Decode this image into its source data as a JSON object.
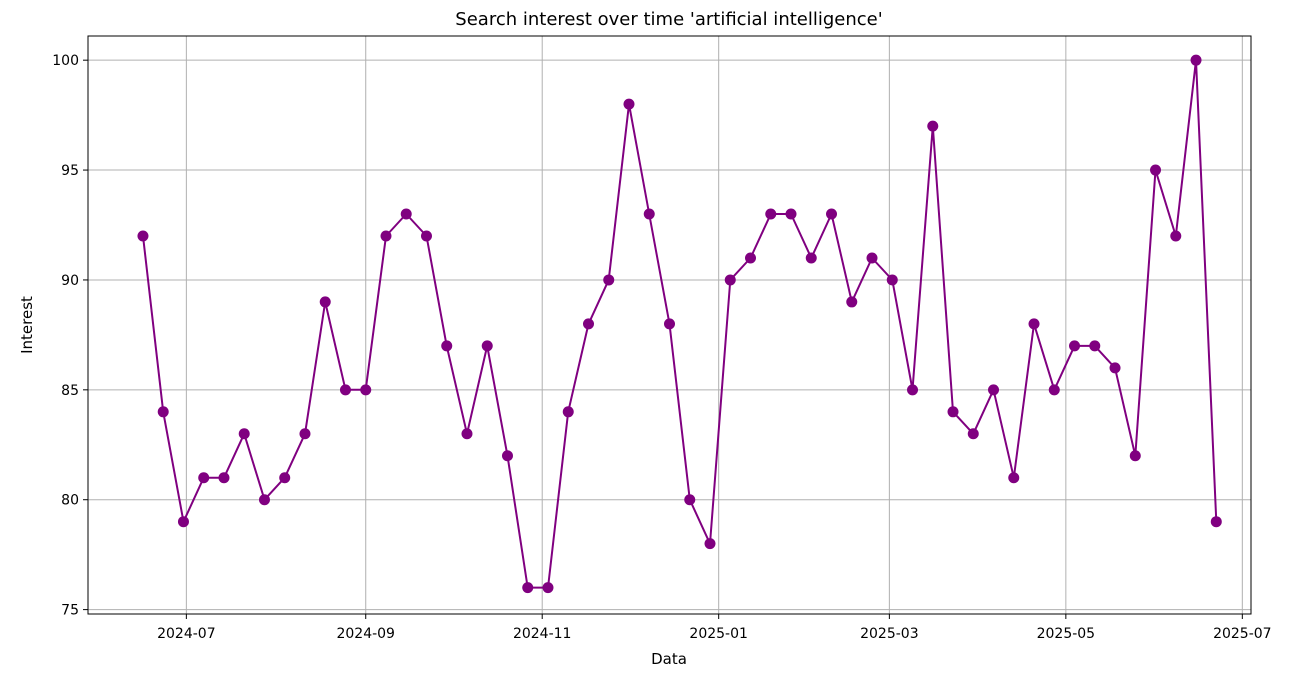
{
  "chart_data": {
    "type": "line",
    "title": "Search interest over time 'artificial intelligence'",
    "xlabel": "Data",
    "ylabel": "Interest",
    "grid": true,
    "colors": {
      "line": "#800080",
      "marker": "#800080"
    },
    "xlim": [
      "2024-05-28",
      "2025-07-04"
    ],
    "ylim": [
      74.8,
      101.1
    ],
    "x_ticks": [
      "2024-07",
      "2024-09",
      "2024-11",
      "2025-01",
      "2025-03",
      "2025-05",
      "2025-07"
    ],
    "y_ticks": [
      75,
      80,
      85,
      90,
      95,
      100
    ],
    "series": [
      {
        "x": [
          "2024-06-16",
          "2024-06-23",
          "2024-06-30",
          "2024-07-07",
          "2024-07-14",
          "2024-07-21",
          "2024-07-28",
          "2024-08-04",
          "2024-08-11",
          "2024-08-18",
          "2024-08-25",
          "2024-09-01",
          "2024-09-08",
          "2024-09-15",
          "2024-09-22",
          "2024-09-29",
          "2024-10-06",
          "2024-10-13",
          "2024-10-20",
          "2024-10-27",
          "2024-11-03",
          "2024-11-10",
          "2024-11-17",
          "2024-11-24",
          "2024-12-01",
          "2024-12-08",
          "2024-12-15",
          "2024-12-22",
          "2024-12-29",
          "2025-01-05",
          "2025-01-12",
          "2025-01-19",
          "2025-01-26",
          "2025-02-02",
          "2025-02-09",
          "2025-02-16",
          "2025-02-23",
          "2025-03-02",
          "2025-03-09",
          "2025-03-16",
          "2025-03-23",
          "2025-03-30",
          "2025-04-06",
          "2025-04-13",
          "2025-04-20",
          "2025-04-27",
          "2025-05-04",
          "2025-05-11",
          "2025-05-18",
          "2025-05-25",
          "2025-06-01",
          "2025-06-08",
          "2025-06-15",
          "2025-06-22"
        ],
        "y": [
          92,
          84,
          79,
          81,
          81,
          83,
          80,
          81,
          83,
          89,
          85,
          85,
          92,
          93,
          92,
          87,
          83,
          87,
          82,
          76,
          76,
          84,
          88,
          90,
          98,
          93,
          88,
          80,
          78,
          90,
          91,
          93,
          93,
          91,
          93,
          89,
          91,
          90,
          85,
          97,
          84,
          83,
          85,
          81,
          88,
          85,
          87,
          87,
          86,
          82,
          95,
          92,
          100,
          79
        ]
      }
    ]
  }
}
